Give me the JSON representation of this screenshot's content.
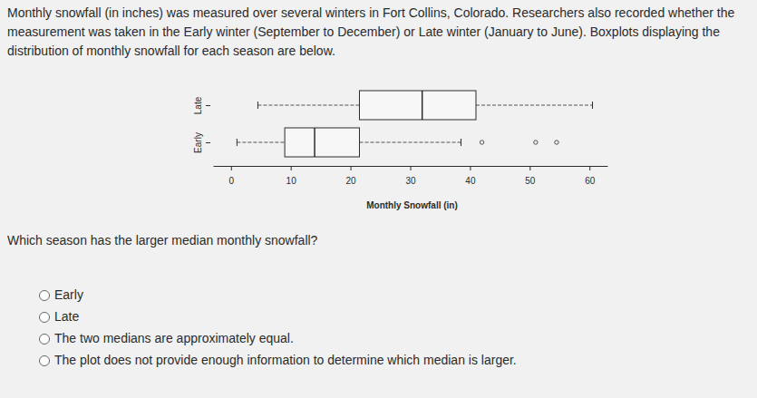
{
  "intro": [
    "Monthly snowfall (in inches) was measured over several winters in Fort Collins, Colorado. Researchers also recorded whether the",
    "measurement was taken in the Early winter (September to December) or Late winter (January to June). Boxplots displaying the",
    "distribution of monthly snowfall for each season are below."
  ],
  "chart_data": {
    "type": "box",
    "orientation": "horizontal",
    "x_label": "Monthly Snowfall (in)",
    "categories": [
      "Early",
      "Late"
    ],
    "boxes": [
      {
        "min": 1,
        "q1": 9,
        "median": 14,
        "q3": 21.5,
        "max": 38.5,
        "outliers": [
          42,
          51,
          54.5
        ]
      },
      {
        "min": 4.5,
        "q1": 21.5,
        "median": 32,
        "q3": 41,
        "max": 60.5,
        "outliers": []
      }
    ],
    "xlim": [
      -3,
      63
    ],
    "xticks": [
      0,
      10,
      20,
      30,
      40,
      50,
      60
    ],
    "grid": false
  },
  "question": "Which season has the larger median monthly snowfall?",
  "options": [
    "Early",
    "Late",
    "The two medians are approximately equal.",
    "The plot does not provide enough information to determine which median is larger."
  ]
}
